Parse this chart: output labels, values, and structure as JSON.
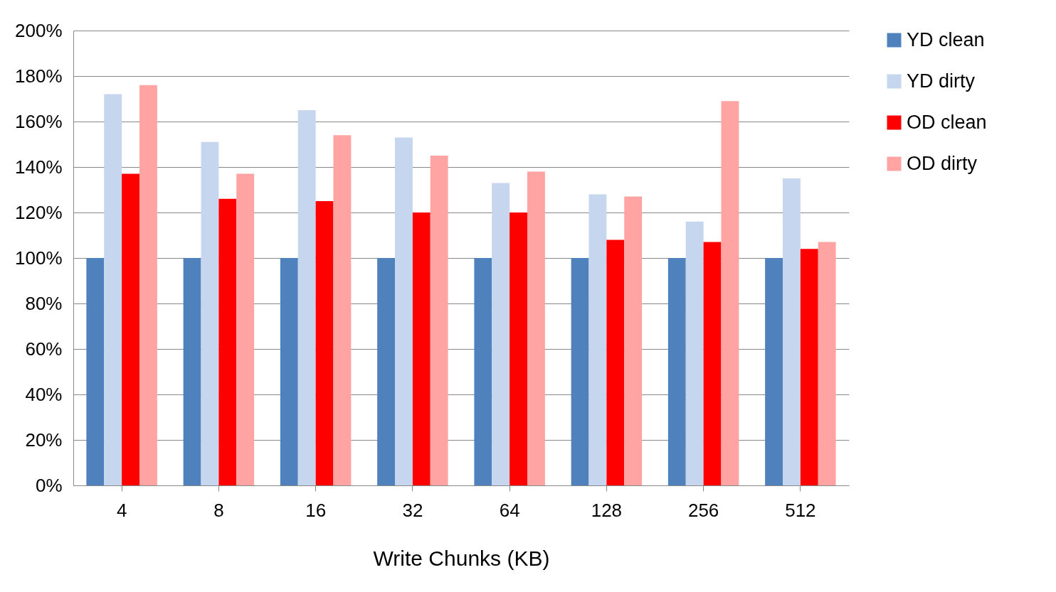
{
  "chart_data": {
    "type": "bar",
    "xlabel": "Write Chunks (KB)",
    "categories": [
      "4",
      "8",
      "16",
      "32",
      "64",
      "128",
      "256",
      "512"
    ],
    "series": [
      {
        "name": "YD clean",
        "color": "#4f81bd",
        "values": [
          100,
          100,
          100,
          100,
          100,
          100,
          100,
          100
        ]
      },
      {
        "name": "YD dirty",
        "color": "#c6d6ee",
        "values": [
          172,
          151,
          165,
          153,
          133,
          128,
          116,
          135
        ]
      },
      {
        "name": "OD clean",
        "color": "#ff0000",
        "values": [
          137,
          126,
          125,
          120,
          120,
          108,
          107,
          104
        ]
      },
      {
        "name": "OD dirty",
        "color": "#ffa3a3",
        "values": [
          176,
          137,
          154,
          145,
          138,
          127,
          169,
          107
        ]
      }
    ],
    "ylim": [
      0,
      200
    ],
    "yticks": [
      {
        "value": 0,
        "label": "0%"
      },
      {
        "value": 20,
        "label": "20%"
      },
      {
        "value": 40,
        "label": "40%"
      },
      {
        "value": 60,
        "label": "60%"
      },
      {
        "value": 80,
        "label": "80%"
      },
      {
        "value": 100,
        "label": "100%"
      },
      {
        "value": 120,
        "label": "120%"
      },
      {
        "value": 140,
        "label": "140%"
      },
      {
        "value": 160,
        "label": "160%"
      },
      {
        "value": 180,
        "label": "180%"
      },
      {
        "value": 200,
        "label": "200%"
      }
    ],
    "grid": "y",
    "legend": "right"
  }
}
